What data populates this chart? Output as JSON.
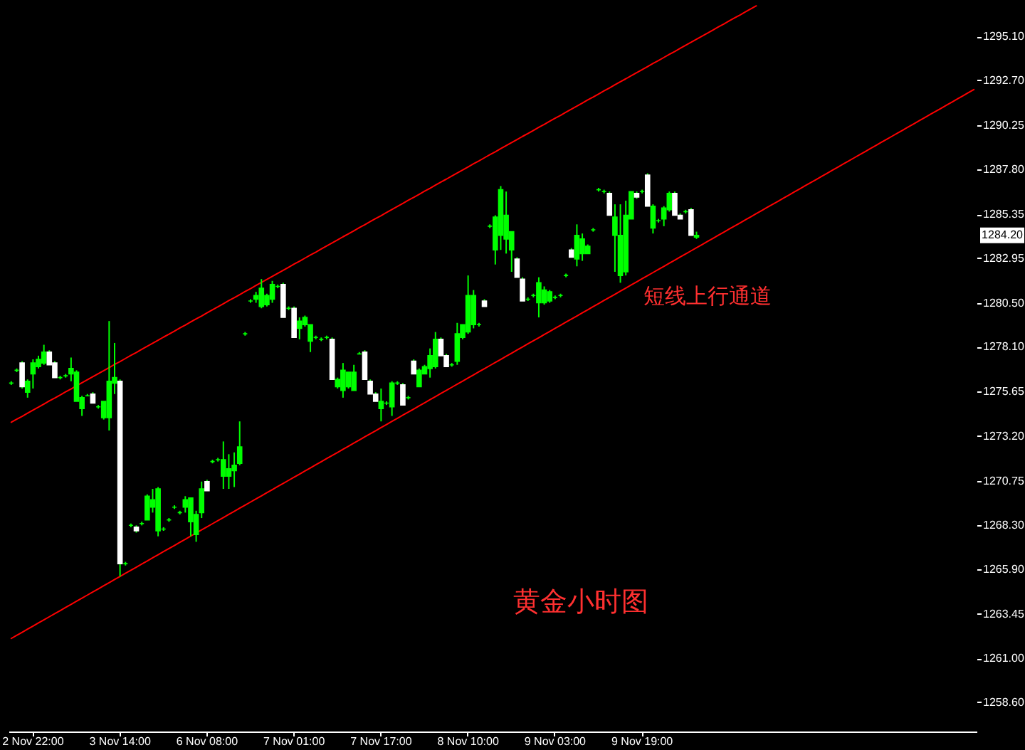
{
  "chart_data": {
    "type": "candlestick",
    "title": "黄金小时图",
    "categories": [
      null,
      null,
      null,
      null,
      "2 Nov 22:00",
      null,
      null,
      null,
      null,
      null,
      null,
      null,
      null,
      null,
      null,
      null,
      null,
      null,
      null,
      null,
      "3 Nov 14:00",
      null,
      null,
      null,
      null,
      null,
      null,
      null,
      null,
      null,
      null,
      null,
      null,
      null,
      null,
      null,
      "6 Nov 08:00",
      null,
      null,
      null,
      null,
      null,
      null,
      null,
      null,
      null,
      null,
      null,
      null,
      null,
      null,
      null,
      "7 Nov 01:00",
      null,
      null,
      null,
      null,
      null,
      null,
      null,
      null,
      null,
      null,
      null,
      null,
      null,
      null,
      null,
      "7 Nov 17:00",
      null,
      null,
      null,
      null,
      null,
      null,
      null,
      null,
      null,
      null,
      null,
      null,
      null,
      null,
      null,
      "8 Nov 10:00",
      null,
      null,
      null,
      null,
      null,
      null,
      null,
      null,
      null,
      null,
      null,
      null,
      null,
      null,
      null,
      "9 Nov 03:00",
      null,
      null,
      null,
      null,
      null,
      null,
      null,
      null,
      null,
      null,
      null,
      null,
      null,
      null,
      null,
      "9 Nov 19:00",
      null,
      null,
      null,
      null,
      null,
      null,
      null,
      null,
      null,
      null,
      null,
      null,
      null,
      null,
      null,
      null,
      null,
      null,
      null,
      null,
      null,
      null,
      null,
      null,
      null,
      null,
      null,
      null,
      null,
      null,
      null,
      null,
      null,
      null,
      null,
      null,
      null,
      null,
      null,
      null,
      null,
      null,
      null,
      null,
      null,
      null,
      null,
      null,
      null,
      null,
      null,
      null,
      null,
      null,
      null,
      null,
      null,
      null,
      null,
      null,
      null
    ],
    "ohlc": [
      [
        1276.1,
        1276.2,
        1276.0,
        1276.1
      ],
      [
        1276.8,
        1276.9,
        1276.7,
        1276.8
      ],
      [
        1277.2,
        1277.3,
        1275.8,
        1275.9
      ],
      [
        1275.6,
        1276.3,
        1275.3,
        1276.2
      ],
      [
        1276.6,
        1277.4,
        1275.8,
        1277.2
      ],
      [
        1277.0,
        1277.6,
        1276.9,
        1277.4
      ],
      [
        1277.2,
        1278.2,
        1277.1,
        1277.8
      ],
      [
        1277.8,
        1277.9,
        1277.1,
        1277.1
      ],
      [
        1277.2,
        1277.3,
        1276.4,
        1276.4
      ],
      [
        1276.4,
        1276.5,
        1276.3,
        1276.4
      ],
      [
        1276.5,
        1276.6,
        1276.4,
        1276.5
      ],
      [
        1276.6,
        1277.5,
        1276.2,
        1276.9
      ],
      [
        1275.1,
        1276.8,
        1275.1,
        1276.7
      ],
      [
        1274.7,
        1275.4,
        1274.3,
        1275.3
      ],
      [
        1275.4,
        1275.5,
        1275.4,
        1275.4
      ],
      [
        1275.5,
        1275.6,
        1275.0,
        1275.0
      ],
      [
        1274.8,
        1274.9,
        1274.7,
        1274.8
      ],
      [
        1274.2,
        1275.1,
        1274.1,
        1275.1
      ],
      [
        1274.2,
        1279.5,
        1273.5,
        1276.2
      ],
      [
        1276.1,
        1278.3,
        1275.5,
        1276.4
      ],
      [
        1276.2,
        1276.3,
        1265.5,
        1266.2
      ],
      [
        1266.2,
        1266.3,
        1266.1,
        1266.2
      ],
      [
        1268.3,
        1268.4,
        1268.2,
        1268.3
      ],
      [
        1268.2,
        1268.3,
        1267.9,
        1268.0
      ],
      [
        1268.4,
        1268.5,
        1268.3,
        1268.4
      ],
      [
        1268.6,
        1270.0,
        1268.6,
        1269.9
      ],
      [
        1269.3,
        1270.3,
        1269.0,
        1269.7
      ],
      [
        1268.0,
        1270.4,
        1267.7,
        1270.3
      ],
      [
        1268.1,
        1268.2,
        1268.0,
        1268.1
      ],
      [
        1268.6,
        1268.7,
        1268.5,
        1268.6
      ],
      [
        1269.3,
        1269.4,
        1269.2,
        1269.3
      ],
      [
        1269.0,
        1269.1,
        1268.9,
        1269.0
      ],
      [
        1269.3,
        1269.9,
        1269.0,
        1269.7
      ],
      [
        1268.5,
        1269.8,
        1267.7,
        1269.8
      ],
      [
        1267.8,
        1269.1,
        1267.4,
        1268.9
      ],
      [
        1269.0,
        1270.7,
        1268.7,
        1270.3
      ],
      [
        1270.7,
        1270.8,
        1270.2,
        1270.2
      ],
      [
        1271.8,
        1271.9,
        1271.7,
        1271.8
      ],
      [
        1271.9,
        1272.0,
        1271.8,
        1271.9
      ],
      [
        1271.0,
        1272.9,
        1270.3,
        1271.9
      ],
      [
        1271.0,
        1272.2,
        1270.3,
        1271.4
      ],
      [
        1271.3,
        1272.3,
        1270.4,
        1271.6
      ],
      [
        1271.7,
        1274.0,
        1271.6,
        1272.6
      ],
      [
        1278.8,
        1278.9,
        1278.7,
        1278.8
      ],
      [
        1280.6,
        1280.7,
        1280.5,
        1280.6
      ],
      [
        1280.7,
        1281.1,
        1280.5,
        1280.9
      ],
      [
        1280.3,
        1281.8,
        1280.2,
        1281.3
      ],
      [
        1280.4,
        1281.0,
        1280.3,
        1280.9
      ],
      [
        1280.7,
        1281.7,
        1280.5,
        1281.5
      ],
      [
        1281.4,
        1281.5,
        1281.3,
        1281.4
      ],
      [
        1281.5,
        1281.6,
        1279.7,
        1279.7
      ],
      [
        1280.2,
        1280.3,
        1280.1,
        1280.2
      ],
      [
        1280.2,
        1280.3,
        1278.6,
        1278.6
      ],
      [
        1279.1,
        1279.7,
        1278.5,
        1279.5
      ],
      [
        1279.3,
        1279.8,
        1279.2,
        1279.7
      ],
      [
        1278.4,
        1279.3,
        1277.8,
        1279.3
      ],
      [
        1278.6,
        1278.7,
        1278.5,
        1278.6
      ],
      [
        1278.5,
        1278.6,
        1278.4,
        1278.5
      ],
      [
        1278.6,
        1278.7,
        1278.5,
        1278.6
      ],
      [
        1278.5,
        1278.6,
        1276.3,
        1276.3
      ],
      [
        1275.9,
        1276.4,
        1275.8,
        1276.3
      ],
      [
        1275.7,
        1277.2,
        1275.3,
        1276.8
      ],
      [
        1275.9,
        1276.7,
        1275.8,
        1276.7
      ],
      [
        1275.7,
        1277.1,
        1275.7,
        1276.7
      ],
      [
        1277.7,
        1277.8,
        1277.7,
        1277.7
      ],
      [
        1277.8,
        1277.9,
        1276.3,
        1276.3
      ],
      [
        1276.2,
        1276.3,
        1275.5,
        1275.5
      ],
      [
        1275.5,
        1275.6,
        1275.1,
        1275.1
      ],
      [
        1274.7,
        1275.8,
        1274.0,
        1275.1
      ],
      [
        1275.0,
        1275.1,
        1274.9,
        1275.0
      ],
      [
        1274.8,
        1276.2,
        1274.3,
        1276.1
      ],
      [
        1276.1,
        1276.2,
        1276.0,
        1276.1
      ],
      [
        1276.0,
        1276.1,
        1274.9,
        1274.9
      ],
      [
        1275.3,
        1275.4,
        1275.2,
        1275.3
      ],
      [
        1277.3,
        1277.4,
        1276.6,
        1276.6
      ],
      [
        1275.9,
        1276.9,
        1275.9,
        1276.8
      ],
      [
        1276.6,
        1277.1,
        1276.6,
        1277.0
      ],
      [
        1276.9,
        1278.0,
        1276.4,
        1277.6
      ],
      [
        1277.0,
        1278.9,
        1276.9,
        1278.5
      ],
      [
        1278.5,
        1278.6,
        1277.6,
        1277.6
      ],
      [
        1277.6,
        1277.7,
        1277.0,
        1277.0
      ],
      [
        1277.1,
        1277.2,
        1277.0,
        1277.1
      ],
      [
        1277.3,
        1279.4,
        1277.1,
        1278.8
      ],
      [
        1278.6,
        1279.3,
        1278.5,
        1279.3
      ],
      [
        1278.9,
        1282.0,
        1278.8,
        1280.9
      ],
      [
        1279.3,
        1281.2,
        1279.1,
        1280.9
      ],
      [
        1279.3,
        1279.4,
        1279.2,
        1279.3
      ],
      [
        1280.6,
        1280.7,
        1280.3,
        1280.3
      ],
      [
        1284.7,
        1284.8,
        1284.6,
        1284.7
      ],
      [
        1283.4,
        1285.3,
        1282.6,
        1285.2
      ],
      [
        1284.2,
        1286.9,
        1283.4,
        1286.7
      ],
      [
        1284.0,
        1286.6,
        1283.2,
        1285.3
      ],
      [
        1283.4,
        1284.4,
        1282.2,
        1284.4
      ],
      [
        1282.9,
        1283.0,
        1281.9,
        1281.9
      ],
      [
        1281.8,
        1281.9,
        1280.6,
        1280.6
      ],
      [
        1280.7,
        1280.8,
        1280.6,
        1280.7
      ],
      [
        1280.9,
        1281.0,
        1280.8,
        1280.9
      ],
      [
        1280.5,
        1281.9,
        1279.7,
        1281.6
      ],
      [
        1280.5,
        1281.4,
        1280.4,
        1281.2
      ],
      [
        1280.6,
        1281.2,
        1280.5,
        1281.1
      ],
      [
        1280.8,
        1280.9,
        1280.7,
        1280.8
      ],
      [
        1280.9,
        1281.0,
        1280.8,
        1280.9
      ],
      [
        1282.0,
        1282.1,
        1281.9,
        1282.0
      ],
      [
        1283.4,
        1283.5,
        1283.0,
        1283.0
      ],
      [
        1282.9,
        1284.8,
        1282.5,
        1284.2
      ],
      [
        1283.2,
        1284.3,
        1282.8,
        1284.0
      ],
      [
        1283.2,
        1283.7,
        1283.2,
        1283.6
      ],
      [
        1284.5,
        1284.6,
        1284.4,
        1284.5
      ],
      [
        1286.7,
        1286.8,
        1286.6,
        1286.7
      ],
      [
        1286.6,
        1286.7,
        1286.5,
        1286.6
      ],
      [
        1286.5,
        1286.6,
        1285.3,
        1285.3
      ],
      [
        1284.2,
        1285.9,
        1282.2,
        1285.2
      ],
      [
        1282.0,
        1285.9,
        1281.6,
        1284.2
      ],
      [
        1282.2,
        1286.1,
        1282.0,
        1285.3
      ],
      [
        1285.1,
        1286.6,
        1285.1,
        1286.6
      ],
      [
        1286.5,
        1286.6,
        1286.2,
        1286.3
      ],
      [
        1286.6,
        1286.7,
        1286.5,
        1286.6
      ],
      [
        1287.5,
        1287.6,
        1285.8,
        1285.8
      ],
      [
        1284.6,
        1285.9,
        1284.3,
        1285.8
      ],
      [
        1285.0,
        1285.1,
        1284.9,
        1285.0
      ],
      [
        1285.1,
        1285.8,
        1284.7,
        1285.7
      ],
      [
        1285.6,
        1286.6,
        1285.5,
        1286.5
      ],
      [
        1286.5,
        1286.6,
        1285.3,
        1285.3
      ],
      [
        1285.3,
        1285.4,
        1285.1,
        1285.1
      ],
      [
        1285.5,
        1285.6,
        1285.4,
        1285.5
      ],
      [
        1285.6,
        1285.7,
        1284.2,
        1284.2
      ],
      [
        1284.1,
        1284.4,
        1284.0,
        1284.2
      ],
      null,
      null,
      null,
      null,
      null,
      null,
      null,
      null,
      null,
      null,
      null,
      null,
      null,
      null,
      null,
      null,
      null,
      null,
      null,
      null,
      null,
      null,
      null,
      null,
      null,
      null,
      null,
      null,
      null,
      null,
      null,
      null,
      null,
      null,
      null,
      null,
      null,
      null,
      null,
      null,
      null,
      null,
      null,
      null,
      null,
      null,
      null,
      null,
      null,
      null,
      null
    ],
    "color": "#00ff00",
    "colors": [
      "#00ff00",
      "#00ff00",
      "#ffffff",
      "#00ff00",
      "#00ff00",
      "#00ff00",
      "#00ff00",
      "#ffffff",
      "#ffffff",
      "#00ff00",
      "#00ff00",
      "#00ff00",
      "#00ff00",
      "#00ff00",
      "#00ff00",
      "#ffffff",
      "#00ff00",
      "#00ff00",
      "#00ff00",
      "#00ff00",
      "#ffffff",
      "#00ff00",
      "#00ff00",
      "#ffffff",
      "#00ff00",
      "#00ff00",
      "#00ff00",
      "#00ff00",
      "#00ff00",
      "#00ff00",
      "#00ff00",
      "#00ff00",
      "#00ff00",
      "#00ff00",
      "#00ff00",
      "#00ff00",
      "#ffffff",
      "#00ff00",
      "#00ff00",
      "#00ff00",
      "#00ff00",
      "#00ff00",
      "#00ff00",
      "#00ff00",
      "#00ff00",
      "#00ff00",
      "#00ff00",
      "#00ff00",
      "#00ff00",
      "#00ff00",
      "#ffffff",
      "#00ff00",
      "#ffffff",
      "#00ff00",
      "#00ff00",
      "#00ff00",
      "#00ff00",
      "#00ff00",
      "#00ff00",
      "#ffffff",
      "#00ff00",
      "#00ff00",
      "#00ff00",
      "#00ff00",
      "#00ff00",
      "#ffffff",
      "#ffffff",
      "#ffffff",
      "#00ff00",
      "#00ff00",
      "#00ff00",
      "#00ff00",
      "#ffffff",
      "#00ff00",
      "#ffffff",
      "#00ff00",
      "#00ff00",
      "#00ff00",
      "#00ff00",
      "#ffffff",
      "#ffffff",
      "#00ff00",
      "#00ff00",
      "#00ff00",
      "#00ff00",
      "#00ff00",
      "#00ff00",
      "#ffffff",
      "#00ff00",
      "#00ff00",
      "#00ff00",
      "#00ff00",
      "#00ff00",
      "#ffffff",
      "#ffffff",
      "#00ff00",
      "#00ff00",
      "#00ff00",
      "#00ff00",
      "#00ff00",
      "#00ff00",
      "#00ff00",
      "#00ff00",
      "#ffffff",
      "#00ff00",
      "#00ff00",
      "#00ff00",
      "#00ff00",
      "#00ff00",
      "#00ff00",
      "#ffffff",
      "#00ff00",
      "#00ff00",
      "#00ff00",
      "#00ff00",
      "#ffffff",
      "#00ff00",
      "#ffffff",
      "#00ff00",
      "#00ff00",
      "#00ff00",
      "#00ff00",
      "#ffffff",
      "#ffffff",
      "#00ff00",
      "#ffffff",
      "#00ff00",
      null,
      null,
      null,
      null,
      null,
      null,
      null,
      null,
      null,
      null,
      null,
      null,
      null,
      null,
      null,
      null,
      null,
      null,
      null,
      null,
      null,
      null,
      null,
      null,
      null,
      null,
      null,
      null,
      null,
      null,
      null,
      null,
      null,
      null,
      null,
      null,
      null,
      null,
      null,
      null,
      null,
      null,
      null,
      null,
      null,
      null,
      null,
      null,
      null,
      null,
      null
    ],
    "series": [
      {
        "type": "line",
        "color": "#ff0000",
        "values": [
          1273.95,
          1274.12,
          1274.28,
          1274.45,
          1274.62,
          1274.78,
          1274.95,
          1275.12,
          1275.28,
          1275.45,
          1275.62,
          1275.78,
          1275.95,
          1276.12,
          1276.28,
          1276.45,
          1276.62,
          1276.78,
          1276.95,
          1277.12,
          1277.28,
          1277.45,
          1277.62,
          1277.78,
          1277.95,
          1278.12,
          1278.28,
          1278.45,
          1278.62,
          1278.78,
          1278.95,
          1279.12,
          1279.28,
          1279.45,
          1279.62,
          1279.78,
          1279.95,
          1280.12,
          1280.28,
          1280.45,
          1280.62,
          1280.78,
          1280.95,
          1281.12,
          1281.28,
          1281.45,
          1281.62,
          1281.78,
          1281.95,
          1282.12,
          1282.28,
          1282.45,
          1282.62,
          1282.78,
          1282.95,
          1283.12,
          1283.28,
          1283.45,
          1283.62,
          1283.78,
          1283.95,
          1284.12,
          1284.28,
          1284.45,
          1284.62,
          1284.78,
          1284.95,
          1285.12,
          1285.28,
          1285.45,
          1285.62,
          1285.78,
          1285.95,
          1286.12,
          1286.28,
          1286.45,
          1286.62,
          1286.78,
          1286.95,
          1287.12,
          1287.28,
          1287.45,
          1287.62,
          1287.78,
          1287.95,
          1288.12,
          1288.28,
          1288.45,
          1288.62,
          1288.78,
          1288.95,
          1289.12,
          1289.28,
          1289.45,
          1289.62,
          1289.78,
          1289.95,
          1290.12,
          1290.28,
          1290.45,
          1290.62,
          1290.78,
          1290.95,
          1291.12,
          1291.28,
          1291.45,
          1291.62,
          1291.78,
          1291.95,
          1292.12,
          1292.28,
          1292.45,
          1292.62,
          1292.78,
          1292.95,
          1293.12,
          1293.28,
          1293.45,
          1293.62,
          1293.78,
          1293.95,
          1294.12,
          1294.28,
          1294.45,
          1294.62,
          1294.78,
          1294.95,
          1295.12,
          1295.28,
          1295.45,
          1295.62,
          1295.78,
          1295.95,
          1296.12,
          1296.28,
          1296.45,
          1296.62,
          1296.78,
          null,
          null,
          null,
          null,
          null,
          null,
          null,
          null,
          null,
          null,
          null,
          null,
          null,
          null,
          null,
          null,
          null,
          null,
          null,
          null,
          null,
          null,
          null,
          null,
          null,
          null,
          null,
          null,
          null,
          null,
          null,
          null,
          null,
          null,
          null,
          null,
          null,
          null,
          null,
          null
        ]
      },
      {
        "type": "line",
        "color": "#ff0000",
        "values": [
          1262.1,
          1262.27,
          1262.44,
          1262.61,
          1262.78,
          1262.95,
          1263.12,
          1263.29,
          1263.46,
          1263.63,
          1263.8,
          1263.97,
          1264.14,
          1264.31,
          1264.48,
          1264.65,
          1264.82,
          1264.99,
          1265.16,
          1265.33,
          1265.5,
          1265.67,
          1265.84,
          1266.01,
          1266.18,
          1266.35,
          1266.52,
          1266.69,
          1266.86,
          1267.03,
          1267.2,
          1267.37,
          1267.54,
          1267.71,
          1267.88,
          1268.05,
          1268.22,
          1268.39,
          1268.56,
          1268.73,
          1268.9,
          1269.07,
          1269.24,
          1269.41,
          1269.58,
          1269.75,
          1269.92,
          1270.09,
          1270.26,
          1270.43,
          1270.6,
          1270.77,
          1270.94,
          1271.11,
          1271.28,
          1271.45,
          1271.62,
          1271.79,
          1271.96,
          1272.13,
          1272.3,
          1272.47,
          1272.64,
          1272.81,
          1272.98,
          1273.15,
          1273.32,
          1273.49,
          1273.66,
          1273.83,
          1274.0,
          1274.17,
          1274.34,
          1274.51,
          1274.68,
          1274.85,
          1275.02,
          1275.19,
          1275.36,
          1275.53,
          1275.7,
          1275.87,
          1276.04,
          1276.21,
          1276.38,
          1276.55,
          1276.72,
          1276.89,
          1277.06,
          1277.23,
          1277.4,
          1277.57,
          1277.74,
          1277.91,
          1278.08,
          1278.25,
          1278.42,
          1278.59,
          1278.76,
          1278.93,
          1279.1,
          1279.27,
          1279.44,
          1279.61,
          1279.78,
          1279.95,
          1280.12,
          1280.29,
          1280.46,
          1280.63,
          1280.8,
          1280.97,
          1281.14,
          1281.31,
          1281.48,
          1281.65,
          1281.82,
          1281.99,
          1282.16,
          1282.33,
          1282.5,
          1282.67,
          1282.84,
          1283.01,
          1283.18,
          1283.35,
          1283.52,
          1283.69,
          1283.86,
          1284.03,
          1284.2,
          1284.37,
          1284.54,
          1284.71,
          1284.88,
          1285.05,
          1285.22,
          1285.39,
          1285.56,
          1285.73,
          1285.9,
          1286.07,
          1286.24,
          1286.41,
          1286.58,
          1286.75,
          1286.92,
          1287.09,
          1287.26,
          1287.43,
          1287.6,
          1287.77,
          1287.94,
          1288.11,
          1288.28,
          1288.45,
          1288.62,
          1288.79,
          1288.96,
          1289.13,
          1289.3,
          1289.47,
          1289.64,
          1289.81,
          1289.98,
          1290.15,
          1290.32,
          1290.49,
          1290.66,
          1290.83,
          1291.0,
          1291.17,
          1291.34,
          1291.51,
          1291.68,
          1291.85,
          1292.02,
          1292.19
        ]
      }
    ],
    "ylim": [
      1257.0,
      1297.1
    ],
    "yticks": [
      {
        "value": 1258.6,
        "label": "1258.60"
      },
      {
        "value": 1261.0,
        "label": "1261.00"
      },
      {
        "value": 1263.45,
        "label": "1263.45"
      },
      {
        "value": 1265.9,
        "label": "1265.90"
      },
      {
        "value": 1268.3,
        "label": "1268.30"
      },
      {
        "value": 1270.75,
        "label": "1270.75"
      },
      {
        "value": 1273.2,
        "label": "1273.20"
      },
      {
        "value": 1275.65,
        "label": "1275.65"
      },
      {
        "value": 1278.1,
        "label": "1278.10"
      },
      {
        "value": 1280.5,
        "label": "1280.50"
      },
      {
        "value": 1282.95,
        "label": "1282.95"
      },
      {
        "value": 1285.35,
        "label": "1285.35"
      },
      {
        "value": 1287.8,
        "label": "1287.80"
      },
      {
        "value": 1290.25,
        "label": "1290.25"
      },
      {
        "value": 1292.7,
        "label": "1292.70"
      },
      {
        "value": 1295.1,
        "label": "1295.10"
      }
    ],
    "annotations": [
      "短线上行通道",
      {
        "text": "1284.20",
        "y": 1284.2
      }
    ]
  }
}
